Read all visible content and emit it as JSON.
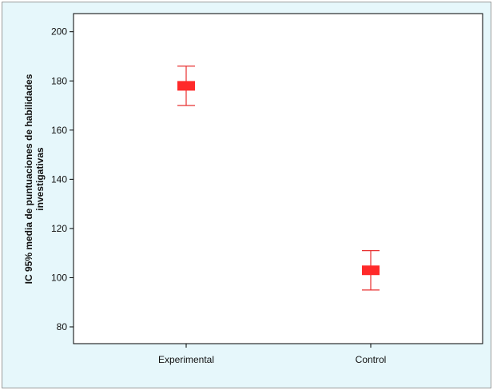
{
  "chart_data": {
    "type": "errorbar",
    "title": "",
    "xlabel": "",
    "ylabel_lines": [
      "IC 95% media de puntuaciones de habilidades",
      "investigativas"
    ],
    "ylim": [
      75,
      205
    ],
    "yticks": [
      80,
      100,
      120,
      140,
      160,
      180,
      200
    ],
    "categories": [
      "Experimental",
      "Control"
    ],
    "points": [
      {
        "category": "Experimental",
        "mean": 178,
        "lower": 170,
        "upper": 186
      },
      {
        "category": "Control",
        "mean": 103,
        "lower": 95,
        "upper": 111
      }
    ],
    "marker_color": "#ff2a2a",
    "errorbar_color": "#e83030",
    "plot_background": "#ffffff",
    "figure_background": "#e6f7fb",
    "grid": false,
    "legend": "none"
  }
}
